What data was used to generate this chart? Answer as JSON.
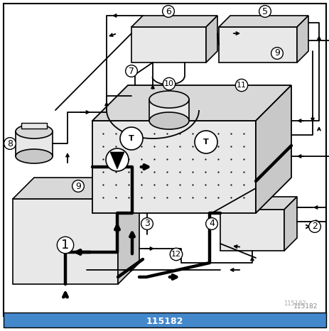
{
  "background_color": "#ffffff",
  "border_color": "#000000",
  "figsize": [
    4.64,
    4.66
  ],
  "dpi": 100,
  "thin_lw": 1.3,
  "thick_lw": 3.2,
  "gray_fill": "#d8d8d8",
  "gray_fill2": "#c8c8c8",
  "gray_fill3": "#e8e8e8",
  "watermark": "115182"
}
